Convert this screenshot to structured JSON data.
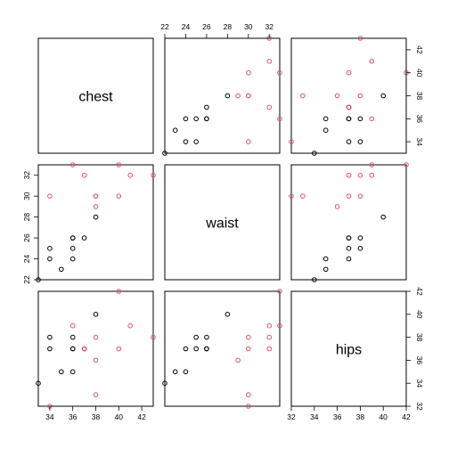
{
  "chart_data": {
    "type": "scatter",
    "subtype": "pairs-matrix",
    "variables": [
      "chest",
      "waist",
      "hips"
    ],
    "ranges": {
      "chest": [
        33,
        43
      ],
      "waist": [
        22,
        33
      ],
      "hips": [
        32,
        42
      ]
    },
    "ticks": {
      "chest": [
        "34",
        "36",
        "38",
        "40",
        "42"
      ],
      "waist": [
        "22",
        "24",
        "26",
        "28",
        "30",
        "32"
      ],
      "hips": [
        "32",
        "34",
        "36",
        "38",
        "40",
        "42"
      ]
    },
    "series": [
      {
        "name": "",
        "color": "#000000",
        "points": [
          {
            "chest": 34,
            "waist": 24,
            "hips": 37
          },
          {
            "chest": 34,
            "waist": 25,
            "hips": 38
          },
          {
            "chest": 35,
            "waist": 23,
            "hips": 35
          },
          {
            "chest": 36,
            "waist": 24,
            "hips": 35
          },
          {
            "chest": 36,
            "waist": 25,
            "hips": 37
          },
          {
            "chest": 36,
            "waist": 26,
            "hips": 37
          },
          {
            "chest": 36,
            "waist": 26,
            "hips": 38
          },
          {
            "chest": 37,
            "waist": 26,
            "hips": 37
          },
          {
            "chest": 38,
            "waist": 28,
            "hips": 40
          },
          {
            "chest": 33,
            "waist": 22,
            "hips": 34
          }
        ]
      },
      {
        "name": "",
        "color": "#df536b",
        "points": [
          {
            "chest": 34,
            "waist": 30,
            "hips": 32
          },
          {
            "chest": 36,
            "waist": 33,
            "hips": 39
          },
          {
            "chest": 37,
            "waist": 32,
            "hips": 37
          },
          {
            "chest": 38,
            "waist": 30,
            "hips": 33
          },
          {
            "chest": 38,
            "waist": 29,
            "hips": 36
          },
          {
            "chest": 38,
            "waist": 30,
            "hips": 38
          },
          {
            "chest": 40,
            "waist": 33,
            "hips": 42
          },
          {
            "chest": 40,
            "waist": 30,
            "hips": 37
          },
          {
            "chest": 41,
            "waist": 32,
            "hips": 39
          },
          {
            "chest": 43,
            "waist": 32,
            "hips": 38
          }
        ]
      }
    ]
  }
}
